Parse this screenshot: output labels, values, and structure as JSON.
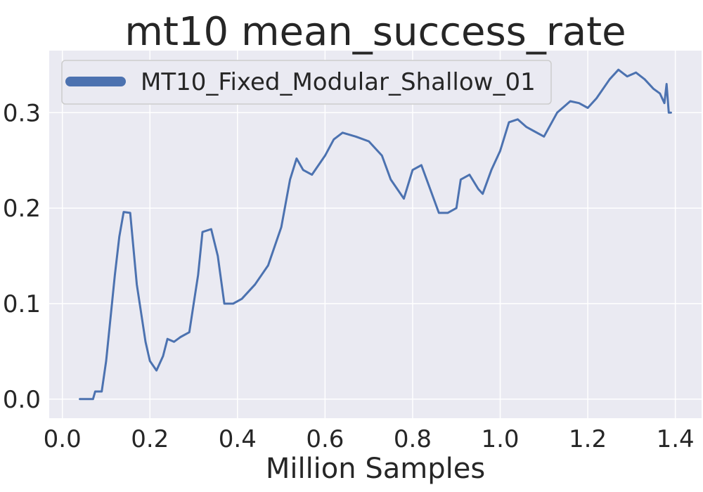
{
  "chart_data": {
    "type": "line",
    "title": "mt10 mean_success_rate",
    "xlabel": "Million Samples",
    "ylabel": "",
    "xlim": [
      -0.03,
      1.46
    ],
    "ylim": [
      -0.02,
      0.365
    ],
    "xticks": [
      0.0,
      0.2,
      0.4,
      0.6,
      0.8,
      1.0,
      1.2,
      1.4
    ],
    "xtick_labels": [
      "0.0",
      "0.2",
      "0.4",
      "0.6",
      "0.8",
      "1.0",
      "1.2",
      "1.4"
    ],
    "yticks": [
      0.0,
      0.1,
      0.2,
      0.3
    ],
    "ytick_labels": [
      "0.0",
      "0.1",
      "0.2",
      "0.3"
    ],
    "grid": true,
    "legend_position": "top-left",
    "background": "#eaeaf2",
    "series": [
      {
        "name": "MT10_Fixed_Modular_Shallow_01",
        "color": "#4c72b0",
        "x": [
          0.04,
          0.07,
          0.075,
          0.09,
          0.1,
          0.12,
          0.13,
          0.14,
          0.155,
          0.17,
          0.19,
          0.2,
          0.215,
          0.23,
          0.24,
          0.255,
          0.27,
          0.29,
          0.3,
          0.31,
          0.32,
          0.34,
          0.355,
          0.37,
          0.39,
          0.41,
          0.44,
          0.47,
          0.5,
          0.52,
          0.535,
          0.55,
          0.57,
          0.6,
          0.62,
          0.64,
          0.67,
          0.7,
          0.73,
          0.75,
          0.78,
          0.8,
          0.82,
          0.84,
          0.86,
          0.88,
          0.9,
          0.91,
          0.93,
          0.95,
          0.96,
          0.98,
          1.0,
          1.02,
          1.04,
          1.06,
          1.08,
          1.1,
          1.13,
          1.16,
          1.18,
          1.2,
          1.22,
          1.25,
          1.27,
          1.29,
          1.31,
          1.33,
          1.35,
          1.365,
          1.375,
          1.38,
          1.385,
          1.39
        ],
        "values": [
          0.0,
          0.0,
          0.008,
          0.008,
          0.04,
          0.13,
          0.17,
          0.196,
          0.195,
          0.12,
          0.06,
          0.04,
          0.03,
          0.045,
          0.063,
          0.06,
          0.065,
          0.07,
          0.1,
          0.13,
          0.175,
          0.178,
          0.15,
          0.1,
          0.1,
          0.105,
          0.12,
          0.14,
          0.18,
          0.23,
          0.252,
          0.24,
          0.235,
          0.255,
          0.272,
          0.279,
          0.275,
          0.27,
          0.255,
          0.23,
          0.21,
          0.24,
          0.245,
          0.22,
          0.195,
          0.195,
          0.2,
          0.23,
          0.235,
          0.22,
          0.215,
          0.24,
          0.26,
          0.29,
          0.293,
          0.285,
          0.28,
          0.275,
          0.3,
          0.312,
          0.31,
          0.305,
          0.315,
          0.335,
          0.345,
          0.338,
          0.342,
          0.335,
          0.325,
          0.32,
          0.31,
          0.33,
          0.3,
          0.3
        ]
      }
    ]
  }
}
